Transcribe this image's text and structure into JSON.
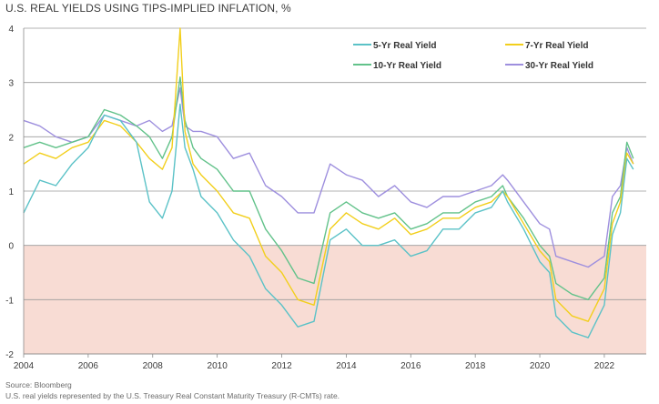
{
  "chart_data": {
    "type": "line",
    "title": "U.S. REAL YIELDS USING TIPS-IMPLIED INFLATION, %",
    "xlabel": "",
    "ylabel": "",
    "xlim": [
      2004,
      2023.3
    ],
    "ylim": [
      -2,
      4
    ],
    "x_ticks": [
      "2004",
      "2006",
      "2008",
      "2010",
      "2012",
      "2014",
      "2016",
      "2018",
      "2020",
      "2022"
    ],
    "y_ticks": [
      "-2",
      "-1",
      "0",
      "1",
      "2",
      "3",
      "4"
    ],
    "grid": "horizontal",
    "negative_region_color": "#f8dcd4",
    "legend_position": "top-right",
    "x": [
      2004.0,
      2004.5,
      2005.0,
      2005.5,
      2006.0,
      2006.5,
      2007.0,
      2007.5,
      2007.9,
      2008.3,
      2008.6,
      2008.85,
      2009.0,
      2009.25,
      2009.5,
      2010.0,
      2010.5,
      2011.0,
      2011.5,
      2012.0,
      2012.5,
      2013.0,
      2013.5,
      2014.0,
      2014.5,
      2015.0,
      2015.5,
      2016.0,
      2016.5,
      2017.0,
      2017.5,
      2018.0,
      2018.5,
      2018.85,
      2019.0,
      2019.5,
      2020.0,
      2020.3,
      2020.5,
      2021.0,
      2021.5,
      2022.0,
      2022.25,
      2022.5,
      2022.7,
      2022.9
    ],
    "series": [
      {
        "name": "5-Yr Real Yield",
        "color": "#5bc2c7",
        "values": [
          0.6,
          1.2,
          1.1,
          1.5,
          1.8,
          2.4,
          2.3,
          1.9,
          0.8,
          0.5,
          1.0,
          2.6,
          1.8,
          1.4,
          0.9,
          0.6,
          0.1,
          -0.2,
          -0.8,
          -1.1,
          -1.5,
          -1.4,
          0.1,
          0.3,
          0.0,
          0.0,
          0.1,
          -0.2,
          -0.1,
          0.3,
          0.3,
          0.6,
          0.7,
          1.0,
          0.8,
          0.3,
          -0.3,
          -0.5,
          -1.3,
          -1.6,
          -1.7,
          -1.1,
          0.2,
          0.6,
          1.6,
          1.4
        ]
      },
      {
        "name": "7-Yr Real Yield",
        "color": "#f2cf1c",
        "values": [
          1.5,
          1.7,
          1.6,
          1.8,
          1.9,
          2.3,
          2.2,
          1.9,
          1.6,
          1.4,
          1.8,
          4.0,
          2.1,
          1.5,
          1.3,
          1.0,
          0.6,
          0.5,
          -0.2,
          -0.5,
          -1.0,
          -1.1,
          0.3,
          0.6,
          0.4,
          0.3,
          0.5,
          0.2,
          0.3,
          0.5,
          0.5,
          0.7,
          0.8,
          1.0,
          0.9,
          0.4,
          -0.1,
          -0.3,
          -1.0,
          -1.3,
          -1.4,
          -0.8,
          0.4,
          0.8,
          1.7,
          1.5
        ]
      },
      {
        "name": "10-Yr Real Yield",
        "color": "#62c28a",
        "values": [
          1.8,
          1.9,
          1.8,
          1.9,
          2.0,
          2.5,
          2.4,
          2.2,
          2.0,
          1.6,
          2.0,
          3.1,
          2.3,
          1.8,
          1.6,
          1.4,
          1.0,
          1.0,
          0.3,
          -0.1,
          -0.6,
          -0.7,
          0.6,
          0.8,
          0.6,
          0.5,
          0.6,
          0.3,
          0.4,
          0.6,
          0.6,
          0.8,
          0.9,
          1.1,
          0.9,
          0.5,
          0.0,
          -0.2,
          -0.7,
          -0.9,
          -1.0,
          -0.6,
          0.6,
          0.9,
          1.9,
          1.6
        ]
      },
      {
        "name": "30-Yr Real Yield",
        "color": "#9e8fde",
        "values": [
          2.3,
          2.2,
          2.0,
          1.9,
          2.0,
          2.4,
          2.3,
          2.2,
          2.3,
          2.1,
          2.2,
          2.9,
          2.2,
          2.1,
          2.1,
          2.0,
          1.6,
          1.7,
          1.1,
          0.9,
          0.6,
          0.6,
          1.5,
          1.3,
          1.2,
          0.9,
          1.1,
          0.8,
          0.7,
          0.9,
          0.9,
          1.0,
          1.1,
          1.3,
          1.2,
          0.8,
          0.4,
          0.3,
          -0.2,
          -0.3,
          -0.4,
          -0.2,
          0.9,
          1.1,
          1.8,
          1.5
        ]
      }
    ]
  },
  "source": "Source: Bloomberg",
  "note": "U.S. real yields represented by the U.S. Treasury Real Constant Maturity Treasury (R-CMTs) rate."
}
